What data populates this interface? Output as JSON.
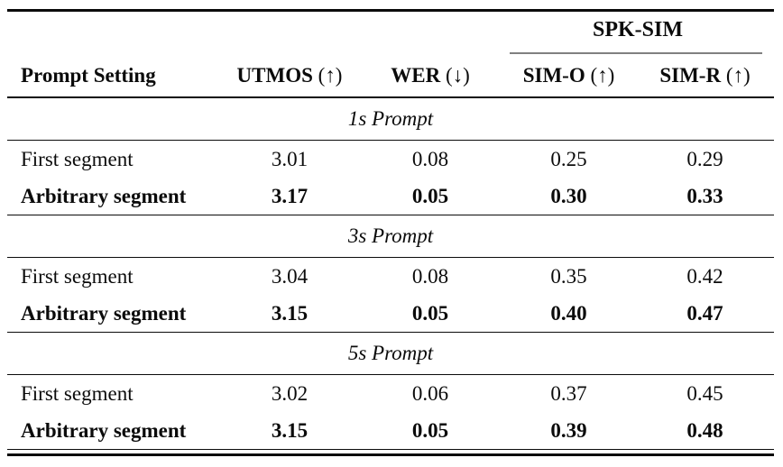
{
  "table": {
    "group_header": {
      "label": "SPK-SIM",
      "spans": [
        "SIM-O",
        "SIM-R"
      ]
    },
    "columns": [
      {
        "name": "Prompt Setting",
        "arrow": ""
      },
      {
        "name": "UTMOS",
        "arrow": "(↑)"
      },
      {
        "name": "WER",
        "arrow": "(↓)"
      },
      {
        "name": "SIM-O",
        "arrow": "(↑)"
      },
      {
        "name": "SIM-R",
        "arrow": "(↑)"
      }
    ],
    "sections": [
      {
        "label": "1s Prompt",
        "rows": [
          {
            "setting": "First segment",
            "values": [
              "3.01",
              "0.08",
              "0.25",
              "0.29"
            ],
            "bold": false
          },
          {
            "setting": "Arbitrary segment",
            "values": [
              "3.17",
              "0.05",
              "0.30",
              "0.33"
            ],
            "bold": true
          }
        ]
      },
      {
        "label": "3s Prompt",
        "rows": [
          {
            "setting": "First segment",
            "values": [
              "3.04",
              "0.08",
              "0.35",
              "0.42"
            ],
            "bold": false
          },
          {
            "setting": "Arbitrary segment",
            "values": [
              "3.15",
              "0.05",
              "0.40",
              "0.47"
            ],
            "bold": true
          }
        ]
      },
      {
        "label": "5s Prompt",
        "rows": [
          {
            "setting": "First segment",
            "values": [
              "3.02",
              "0.06",
              "0.37",
              "0.45"
            ],
            "bold": false
          },
          {
            "setting": "Arbitrary segment",
            "values": [
              "3.15",
              "0.05",
              "0.39",
              "0.48"
            ],
            "bold": true
          }
        ]
      }
    ],
    "rule_colors": {
      "heavy_rule": "#0b0b0b",
      "mid_rule": "#0b0b0b",
      "cmidrule": "#808080"
    }
  }
}
